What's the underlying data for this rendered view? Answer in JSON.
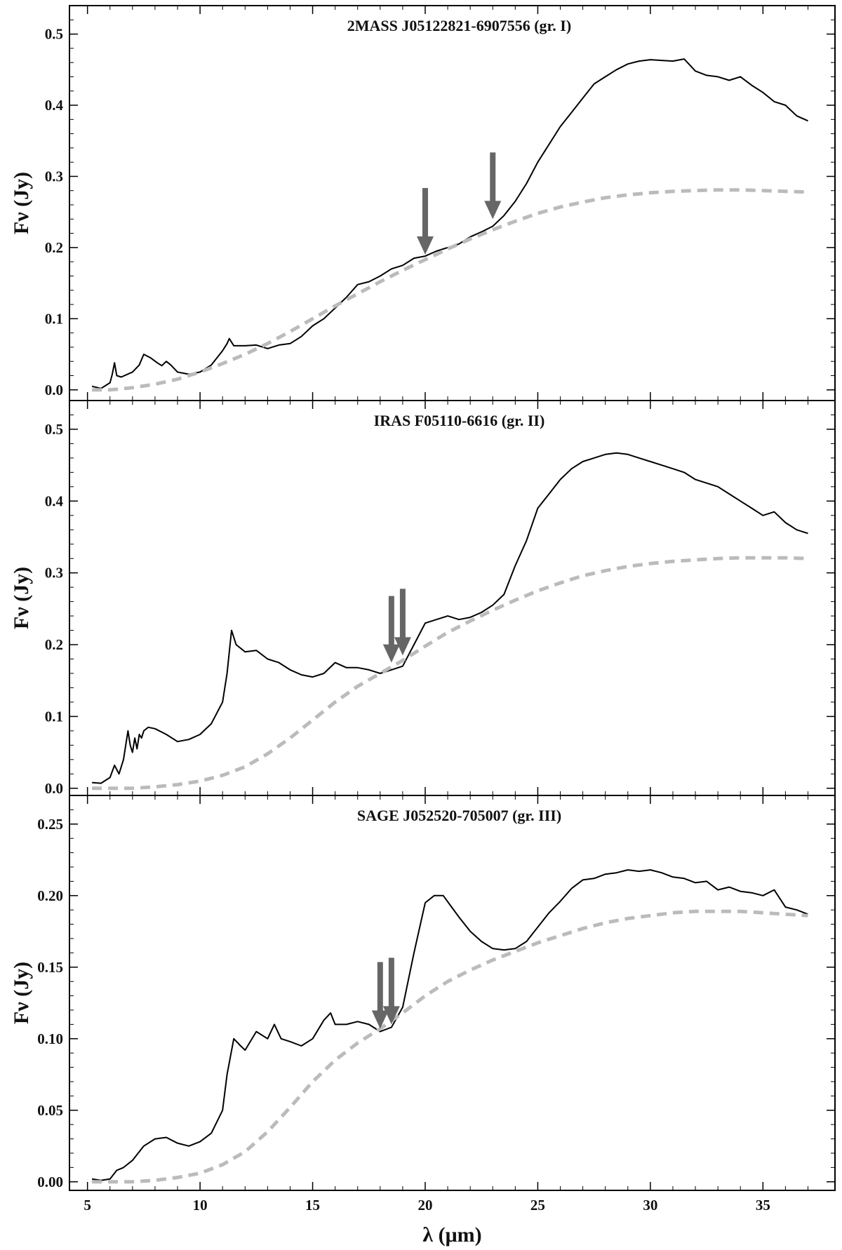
{
  "chart_data": [
    {
      "type": "line",
      "title": "2MASS J05122821-6907556 (gr. I)",
      "ylabel": "Fν (Jy)",
      "xlabel": "",
      "xlim": [
        4.2,
        38.2
      ],
      "ylim": [
        -0.015,
        0.54
      ],
      "yticks": [
        "0.0",
        "0.1",
        "0.2",
        "0.3",
        "0.4",
        "0.5"
      ],
      "ytick_values": [
        0.0,
        0.1,
        0.2,
        0.3,
        0.4,
        0.5
      ],
      "grid": false,
      "series": [
        {
          "style": "solid",
          "color": "#000000",
          "x": [
            5.2,
            5.6,
            6.0,
            6.1,
            6.2,
            6.3,
            6.5,
            7.0,
            7.3,
            7.5,
            7.8,
            8.1,
            8.3,
            8.5,
            8.7,
            9.0,
            9.5,
            10.0,
            10.5,
            11.0,
            11.2,
            11.3,
            11.5,
            12.0,
            12.5,
            13.0,
            13.5,
            14.0,
            14.5,
            15.0,
            15.5,
            16.0,
            16.5,
            17.0,
            17.5,
            18.0,
            18.5,
            19.0,
            19.5,
            20.0,
            20.5,
            21.0,
            21.5,
            22.0,
            22.5,
            23.0,
            23.5,
            24.0,
            24.5,
            25.0,
            25.5,
            26.0,
            26.5,
            27.0,
            27.5,
            28.0,
            28.5,
            29.0,
            29.5,
            30.0,
            30.5,
            31.0,
            31.5,
            32.0,
            32.5,
            33.0,
            33.5,
            34.0,
            34.5,
            35.0,
            35.5,
            36.0,
            36.5,
            37.0
          ],
          "y": [
            0.005,
            0.002,
            0.01,
            0.022,
            0.038,
            0.02,
            0.018,
            0.025,
            0.035,
            0.05,
            0.045,
            0.038,
            0.034,
            0.04,
            0.035,
            0.025,
            0.022,
            0.025,
            0.035,
            0.055,
            0.065,
            0.072,
            0.062,
            0.062,
            0.063,
            0.058,
            0.063,
            0.065,
            0.075,
            0.09,
            0.1,
            0.115,
            0.13,
            0.148,
            0.152,
            0.16,
            0.17,
            0.175,
            0.185,
            0.188,
            0.195,
            0.2,
            0.205,
            0.215,
            0.222,
            0.23,
            0.245,
            0.265,
            0.29,
            0.32,
            0.345,
            0.37,
            0.39,
            0.41,
            0.43,
            0.44,
            0.45,
            0.458,
            0.462,
            0.464,
            0.463,
            0.462,
            0.465,
            0.448,
            0.442,
            0.44,
            0.435,
            0.44,
            0.428,
            0.418,
            0.405,
            0.4,
            0.385,
            0.378
          ]
        },
        {
          "style": "dashed",
          "color": "#bbbbbb",
          "x": [
            5.2,
            6,
            7,
            8,
            9,
            10,
            11,
            12,
            13,
            14,
            15,
            16,
            17,
            18,
            19,
            20,
            21,
            22,
            23,
            24,
            25,
            26,
            27,
            28,
            29,
            30,
            31,
            32,
            33,
            34,
            35,
            36,
            37
          ],
          "y": [
            0.0,
            0.0,
            0.003,
            0.008,
            0.015,
            0.025,
            0.037,
            0.05,
            0.065,
            0.082,
            0.1,
            0.118,
            0.135,
            0.152,
            0.168,
            0.183,
            0.198,
            0.212,
            0.225,
            0.237,
            0.248,
            0.257,
            0.264,
            0.27,
            0.274,
            0.277,
            0.279,
            0.28,
            0.281,
            0.281,
            0.28,
            0.279,
            0.278
          ]
        }
      ],
      "arrows": [
        {
          "x": 20.0,
          "y_tip": 0.19
        },
        {
          "x": 23.0,
          "y_tip": 0.24
        }
      ]
    },
    {
      "type": "line",
      "title": "IRAS F05110-6616 (gr. II)",
      "ylabel": "Fν (Jy)",
      "xlabel": "",
      "xlim": [
        4.2,
        38.2
      ],
      "ylim": [
        -0.01,
        0.54
      ],
      "yticks": [
        "0.0",
        "0.1",
        "0.2",
        "0.3",
        "0.4",
        "0.5"
      ],
      "ytick_values": [
        0.0,
        0.1,
        0.2,
        0.3,
        0.4,
        0.5
      ],
      "grid": false,
      "series": [
        {
          "style": "solid",
          "color": "#000000",
          "x": [
            5.2,
            5.6,
            6.0,
            6.2,
            6.4,
            6.6,
            6.8,
            6.9,
            7.0,
            7.1,
            7.2,
            7.3,
            7.4,
            7.5,
            7.7,
            8.0,
            8.5,
            9.0,
            9.5,
            10.0,
            10.5,
            11.0,
            11.2,
            11.4,
            11.6,
            12.0,
            12.5,
            13.0,
            13.5,
            14.0,
            14.5,
            15.0,
            15.5,
            16.0,
            16.5,
            17.0,
            17.5,
            18.0,
            18.5,
            19.0,
            19.5,
            20.0,
            20.5,
            21.0,
            21.5,
            22.0,
            22.5,
            23.0,
            23.5,
            24.0,
            24.5,
            25.0,
            25.5,
            26.0,
            26.5,
            27.0,
            27.5,
            28.0,
            28.5,
            29.0,
            29.5,
            30.0,
            30.5,
            31.0,
            31.5,
            32.0,
            32.5,
            33.0,
            33.5,
            34.0,
            34.5,
            35.0,
            35.5,
            36.0,
            36.5,
            37.0
          ],
          "y": [
            0.008,
            0.007,
            0.015,
            0.032,
            0.02,
            0.04,
            0.08,
            0.06,
            0.05,
            0.07,
            0.055,
            0.075,
            0.07,
            0.08,
            0.085,
            0.083,
            0.075,
            0.065,
            0.068,
            0.075,
            0.09,
            0.12,
            0.16,
            0.22,
            0.2,
            0.19,
            0.192,
            0.18,
            0.175,
            0.165,
            0.158,
            0.155,
            0.16,
            0.175,
            0.168,
            0.168,
            0.165,
            0.16,
            0.165,
            0.17,
            0.2,
            0.23,
            0.235,
            0.24,
            0.235,
            0.238,
            0.245,
            0.255,
            0.27,
            0.31,
            0.345,
            0.39,
            0.41,
            0.43,
            0.445,
            0.455,
            0.46,
            0.465,
            0.467,
            0.465,
            0.46,
            0.455,
            0.45,
            0.445,
            0.44,
            0.43,
            0.425,
            0.42,
            0.41,
            0.4,
            0.39,
            0.38,
            0.385,
            0.37,
            0.36,
            0.355
          ]
        },
        {
          "style": "dashed",
          "color": "#bbbbbb",
          "x": [
            5.2,
            6,
            7,
            8,
            9,
            10,
            11,
            12,
            13,
            14,
            15,
            16,
            17,
            18,
            19,
            20,
            21,
            22,
            23,
            24,
            25,
            26,
            27,
            28,
            29,
            30,
            31,
            32,
            33,
            34,
            35,
            36,
            37
          ],
          "y": [
            0.0,
            0.0,
            0.0,
            0.002,
            0.005,
            0.01,
            0.018,
            0.03,
            0.048,
            0.07,
            0.095,
            0.12,
            0.142,
            0.16,
            0.178,
            0.198,
            0.217,
            0.233,
            0.248,
            0.262,
            0.275,
            0.286,
            0.296,
            0.303,
            0.309,
            0.313,
            0.316,
            0.318,
            0.32,
            0.321,
            0.321,
            0.321,
            0.32
          ]
        }
      ],
      "arrows": [
        {
          "x": 18.5,
          "y_tip": 0.175
        },
        {
          "x": 19.0,
          "y_tip": 0.185
        }
      ]
    },
    {
      "type": "line",
      "title": "SAGE J052520-705007 (gr. III)",
      "ylabel": "Fν (Jy)",
      "xlabel": "λ (μm)",
      "xlim": [
        4.2,
        38.2
      ],
      "ylim": [
        -0.006,
        0.27
      ],
      "xticks": [
        "5",
        "10",
        "15",
        "20",
        "25",
        "30",
        "35"
      ],
      "xtick_values": [
        5,
        10,
        15,
        20,
        25,
        30,
        35
      ],
      "yticks": [
        "0.00",
        "0.05",
        "0.10",
        "0.15",
        "0.20",
        "0.25"
      ],
      "ytick_values": [
        0.0,
        0.05,
        0.1,
        0.15,
        0.2,
        0.25
      ],
      "grid": false,
      "series": [
        {
          "style": "solid",
          "color": "#000000",
          "x": [
            5.2,
            5.6,
            6.0,
            6.3,
            6.6,
            7.0,
            7.5,
            8.0,
            8.5,
            9.0,
            9.5,
            10.0,
            10.5,
            11.0,
            11.2,
            11.5,
            11.8,
            12.0,
            12.5,
            13.0,
            13.3,
            13.6,
            14.0,
            14.5,
            15.0,
            15.5,
            15.8,
            16.0,
            16.5,
            17.0,
            17.5,
            18.0,
            18.5,
            19.0,
            19.5,
            20.0,
            20.4,
            20.8,
            21.5,
            22.0,
            22.5,
            23.0,
            23.5,
            24.0,
            24.5,
            25.0,
            25.5,
            26.0,
            26.5,
            27.0,
            27.5,
            28.0,
            28.5,
            29.0,
            29.5,
            30.0,
            30.5,
            31.0,
            31.5,
            32.0,
            32.5,
            33.0,
            33.5,
            34.0,
            34.5,
            35.0,
            35.5,
            36.0,
            36.5,
            37.0
          ],
          "y": [
            0.002,
            0.001,
            0.002,
            0.008,
            0.01,
            0.015,
            0.025,
            0.03,
            0.031,
            0.027,
            0.025,
            0.028,
            0.034,
            0.05,
            0.075,
            0.1,
            0.095,
            0.092,
            0.105,
            0.1,
            0.11,
            0.1,
            0.098,
            0.095,
            0.1,
            0.113,
            0.118,
            0.11,
            0.11,
            0.112,
            0.11,
            0.105,
            0.108,
            0.122,
            0.16,
            0.195,
            0.2,
            0.2,
            0.185,
            0.175,
            0.168,
            0.163,
            0.162,
            0.163,
            0.168,
            0.178,
            0.188,
            0.196,
            0.205,
            0.211,
            0.212,
            0.215,
            0.216,
            0.218,
            0.217,
            0.218,
            0.216,
            0.213,
            0.212,
            0.209,
            0.21,
            0.204,
            0.206,
            0.203,
            0.202,
            0.2,
            0.204,
            0.192,
            0.19,
            0.187
          ]
        },
        {
          "style": "dashed",
          "color": "#bbbbbb",
          "x": [
            5.2,
            6,
            7,
            8,
            9,
            10,
            11,
            12,
            13,
            14,
            15,
            16,
            17,
            18,
            19,
            20,
            21,
            22,
            23,
            24,
            25,
            26,
            27,
            28,
            29,
            30,
            31,
            32,
            33,
            34,
            35,
            36,
            37
          ],
          "y": [
            0.0,
            0.0,
            0.0,
            0.001,
            0.003,
            0.006,
            0.012,
            0.021,
            0.035,
            0.052,
            0.07,
            0.085,
            0.097,
            0.107,
            0.118,
            0.13,
            0.14,
            0.148,
            0.155,
            0.161,
            0.167,
            0.172,
            0.177,
            0.181,
            0.184,
            0.186,
            0.188,
            0.189,
            0.189,
            0.189,
            0.188,
            0.187,
            0.186
          ]
        }
      ],
      "arrows": [
        {
          "x": 18.0,
          "y_tip": 0.107
        },
        {
          "x": 18.5,
          "y_tip": 0.11
        }
      ]
    }
  ]
}
